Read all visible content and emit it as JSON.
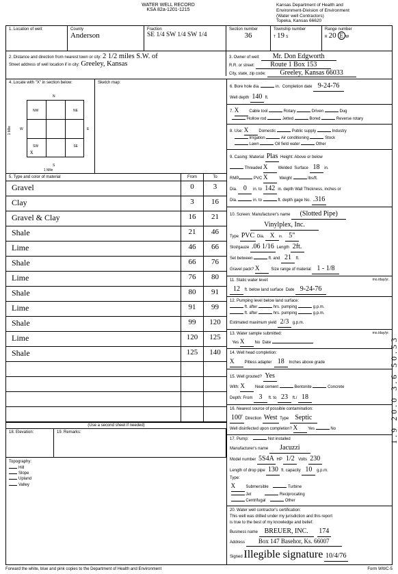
{
  "form": {
    "title": "WATER WELL RECORD",
    "ksa": "KSA 82a-1201-1215",
    "dept_lines": [
      "Kansas Department of Health and",
      "Environment-Division of Environment",
      "(Water well Contractors)",
      "Topeka, Kansas 66620"
    ],
    "form_no": "Form WWC-5"
  },
  "sec1": {
    "label": "1. Location of well:",
    "county_label": "County",
    "county": "Anderson",
    "fraction_label": "Fraction",
    "fraction": "SE 1/4  SW 1/4  SW 1/4",
    "section_label": "Section number",
    "section": "36",
    "township_label": "Township number",
    "township_prefix": "T",
    "township": "19",
    "township_suffix": "S",
    "range_label": "Range number",
    "range_prefix": "R",
    "range": "20",
    "range_dir": "E/W"
  },
  "sec2": {
    "label": "2. Distance and direction from nearest town or city:",
    "distance": "2 1/2 miles S.W. of",
    "street_label": "Street address of well location if in city:",
    "street": "Greeley, Kansas"
  },
  "sec3": {
    "label": "3. Owner of well:",
    "owner": "Mr. Don Edgworth",
    "rr_label": "R.R. or street:",
    "rr": "Route 1   Box 153",
    "csz_label": "City, state, zip code:",
    "csz": "Greeley, Kansas 66033"
  },
  "sec4": {
    "label": "4. Locate with \"X\" in section below:",
    "sketch_label": "Sketch map:",
    "n": "N",
    "s": "S",
    "e": "E",
    "w": "W",
    "nw": "NW",
    "ne": "NE",
    "sw": "SW",
    "se": "SE",
    "mile_h": "1 Mile",
    "mile_v": "1 Mile"
  },
  "sec5": {
    "label": "5. Type and color of material",
    "from": "From",
    "to": "To"
  },
  "materials": [
    {
      "name": "Gravel",
      "from": "0",
      "to": "3"
    },
    {
      "name": "Clay",
      "from": "3",
      "to": "16"
    },
    {
      "name": "Gravel & Clay",
      "from": "16",
      "to": "21"
    },
    {
      "name": "Shale",
      "from": "21",
      "to": "46"
    },
    {
      "name": "Lime",
      "from": "46",
      "to": "66"
    },
    {
      "name": "Shale",
      "from": "66",
      "to": "76"
    },
    {
      "name": "Lime",
      "from": "76",
      "to": "80"
    },
    {
      "name": "Shale",
      "from": "80",
      "to": "91"
    },
    {
      "name": "Lime",
      "from": "91",
      "to": "99"
    },
    {
      "name": "Shale",
      "from": "99",
      "to": "120"
    },
    {
      "name": "Lime",
      "from": "120",
      "to": "125"
    },
    {
      "name": "Shale",
      "from": "125",
      "to": "140"
    },
    {
      "name": "",
      "from": "",
      "to": ""
    },
    {
      "name": "",
      "from": "",
      "to": ""
    },
    {
      "name": "",
      "from": "",
      "to": ""
    },
    {
      "name": "",
      "from": "",
      "to": ""
    }
  ],
  "use2nd": "(Use a second sheet if needed)",
  "sec6": {
    "label": "6. Bore hole dia.",
    "dia": "",
    "in": "in.",
    "comp_label": "Completion date",
    "comp": "9-24-76",
    "depth_label": "Well depth",
    "depth": "140",
    "ft": "ft."
  },
  "sec7": {
    "label": "7.",
    "cable": "Cable tool",
    "cable_x": "X",
    "rotary": "Rotary",
    "driven": "Driven",
    "dug": "Dug",
    "hollow": "Hollow rod",
    "jetted": "Jetted",
    "bored": "Bored",
    "reverse": "Reverse rotary"
  },
  "sec8": {
    "label": "8. Use:",
    "domestic": "Domestic",
    "dom_x": "X",
    "public": "Public supply",
    "industry": "Industry",
    "irrigation": "Irrigation",
    "air": "Air conditioning",
    "stock": "Stock",
    "lawn": "Lawn",
    "oil": "Oil field water",
    "other": "Other"
  },
  "sec9": {
    "label": "9. Casing: Material",
    "material": "Plas",
    "height_label": "Height: Above or below",
    "threaded": "Threaded",
    "welded": "Welded",
    "welded_x": "X",
    "surface": "Surface",
    "surface_v": "18",
    "in": "in.",
    "rmp": "RMP",
    "pvc": "PVC",
    "pvc_x": "X",
    "weight": "Weight",
    "lbs": "lbs/ft.",
    "dia_from": "Dia.",
    "dia_from_v": "0",
    "dia_to": "in. to",
    "dia_to_v": "142",
    "depth_label": "in. depth",
    "wall": "Wall Thickness, inches or",
    "dia2_from": "Dia.",
    "dia2_to": "in. to",
    "depth2": "ft. depth",
    "gage": "gage No.",
    "gage_v": ".316"
  },
  "sec10": {
    "label": "10. Screen: Manufacturer's name",
    "name": "(Slotted Pipe)",
    "mfg": "Vinylplex, Inc.",
    "type": "Type",
    "type_v": "PVC",
    "dia": "Dia.",
    "dia_v": "",
    "slot": "Slot",
    "slot_v": "5\"",
    "slot_gauge": "Slot/gauze",
    "sg_v": ".06 1/16",
    "length": "Length",
    "len_v": "2ft.",
    "set_between": "Set between",
    "sb1": "",
    "sb2": "21",
    "gravel_pack": "Gravel pack?",
    "gp_x": "X",
    "size_range": "Size range of material",
    "sr_v": "1 - 1/8"
  },
  "sec11": {
    "label": "11. Static water level:",
    "level": "12",
    "below": "ft. below land surface",
    "date_label": "Date",
    "date": "9-24-76",
    "mody": "mo./day/yr."
  },
  "sec12": {
    "label": "12. Pumping level below land surface:",
    "ft_after1": "ft. after",
    "hrs1": "hrs. pumping",
    "gpm1": "g.p.m.",
    "ft_after2": "ft. after",
    "hrs2": "hrs. pumping",
    "gpm2": "g.p.m.",
    "est_label": "Estimated maximum yield",
    "est": "2/3",
    "gpm": "g.p.m."
  },
  "sec13": {
    "label": "13. Water sample submitted:",
    "mody": "mo./day/yr.",
    "yes": "Yes",
    "yes_x": "X",
    "no": "No",
    "date": "Date"
  },
  "sec14": {
    "label": "14. Well head completion:",
    "pitless": "Pitless adapter",
    "pit_x": "X",
    "inches": "18",
    "above": "Inches above grade"
  },
  "sec15": {
    "label": "15. Well grouted?",
    "grouted": "Yes",
    "with": "With:",
    "neat": "Neat cement",
    "neat_x": "X",
    "bentonite": "Bentonite",
    "concrete": "Concrete",
    "depth_from": "Depth: From",
    "df": "3",
    "ft_to": "ft. to",
    "dt": "23",
    "ft": "ft./",
    "last": "18"
  },
  "sec16": {
    "label": "16. Nearest source of possible contamination:",
    "feet": "100'",
    "direction_label": "Direction",
    "direction": "West",
    "type_label": "Type",
    "type": "Septic",
    "disinfected": "Well disinfected upon completion?",
    "yes_x": "X",
    "yes": "Yes",
    "no": "No"
  },
  "sec17": {
    "label": "17. Pump:",
    "not_installed": "Not installed",
    "mfg_label": "Manufacturer's name",
    "mfg": "Jacuzzi",
    "model_label": "Model number",
    "model": "5S4A",
    "hp_label": "HP",
    "hp": "1/2",
    "volts_label": "Volts",
    "volts": "230",
    "drop_label": "Length of drop pipe",
    "drop": "130",
    "cap_label": "ft. capacity",
    "cap": "10",
    "gpm": "g.p.m.",
    "type_label": "Type:",
    "sub": "Submersible",
    "sub_x": "X",
    "turbine": "Turbine",
    "jet": "Jet",
    "recip": "Reciprocating",
    "centrifugal": "Centrifugal",
    "other": "Other"
  },
  "sec18": {
    "label": "18. Elevation:"
  },
  "sec19": {
    "label": "19. Remarks:"
  },
  "sec20": {
    "label": "20. Water well contractor's certification:",
    "line1": "This well was drilled under my jurisdiction and this report",
    "line2": "is true to the best of my knowledge and belief.",
    "bus_label": "Business name",
    "bus": "BREUER, INC.",
    "lic_no": "174",
    "addr_label": "Address",
    "addr": "Box 147  Basehor, Ks. 66007",
    "signed_label": "Signed",
    "date": "10/4/76"
  },
  "topo": {
    "label": "Topography:",
    "hill": "Hill",
    "slope": "Slope",
    "upland": "Upland",
    "valley": "Valley"
  },
  "footer_left": "Forward the white, blue and pink copies to the Department of Health and Environment",
  "margin": "1.9  20.0  3.6  50.53"
}
